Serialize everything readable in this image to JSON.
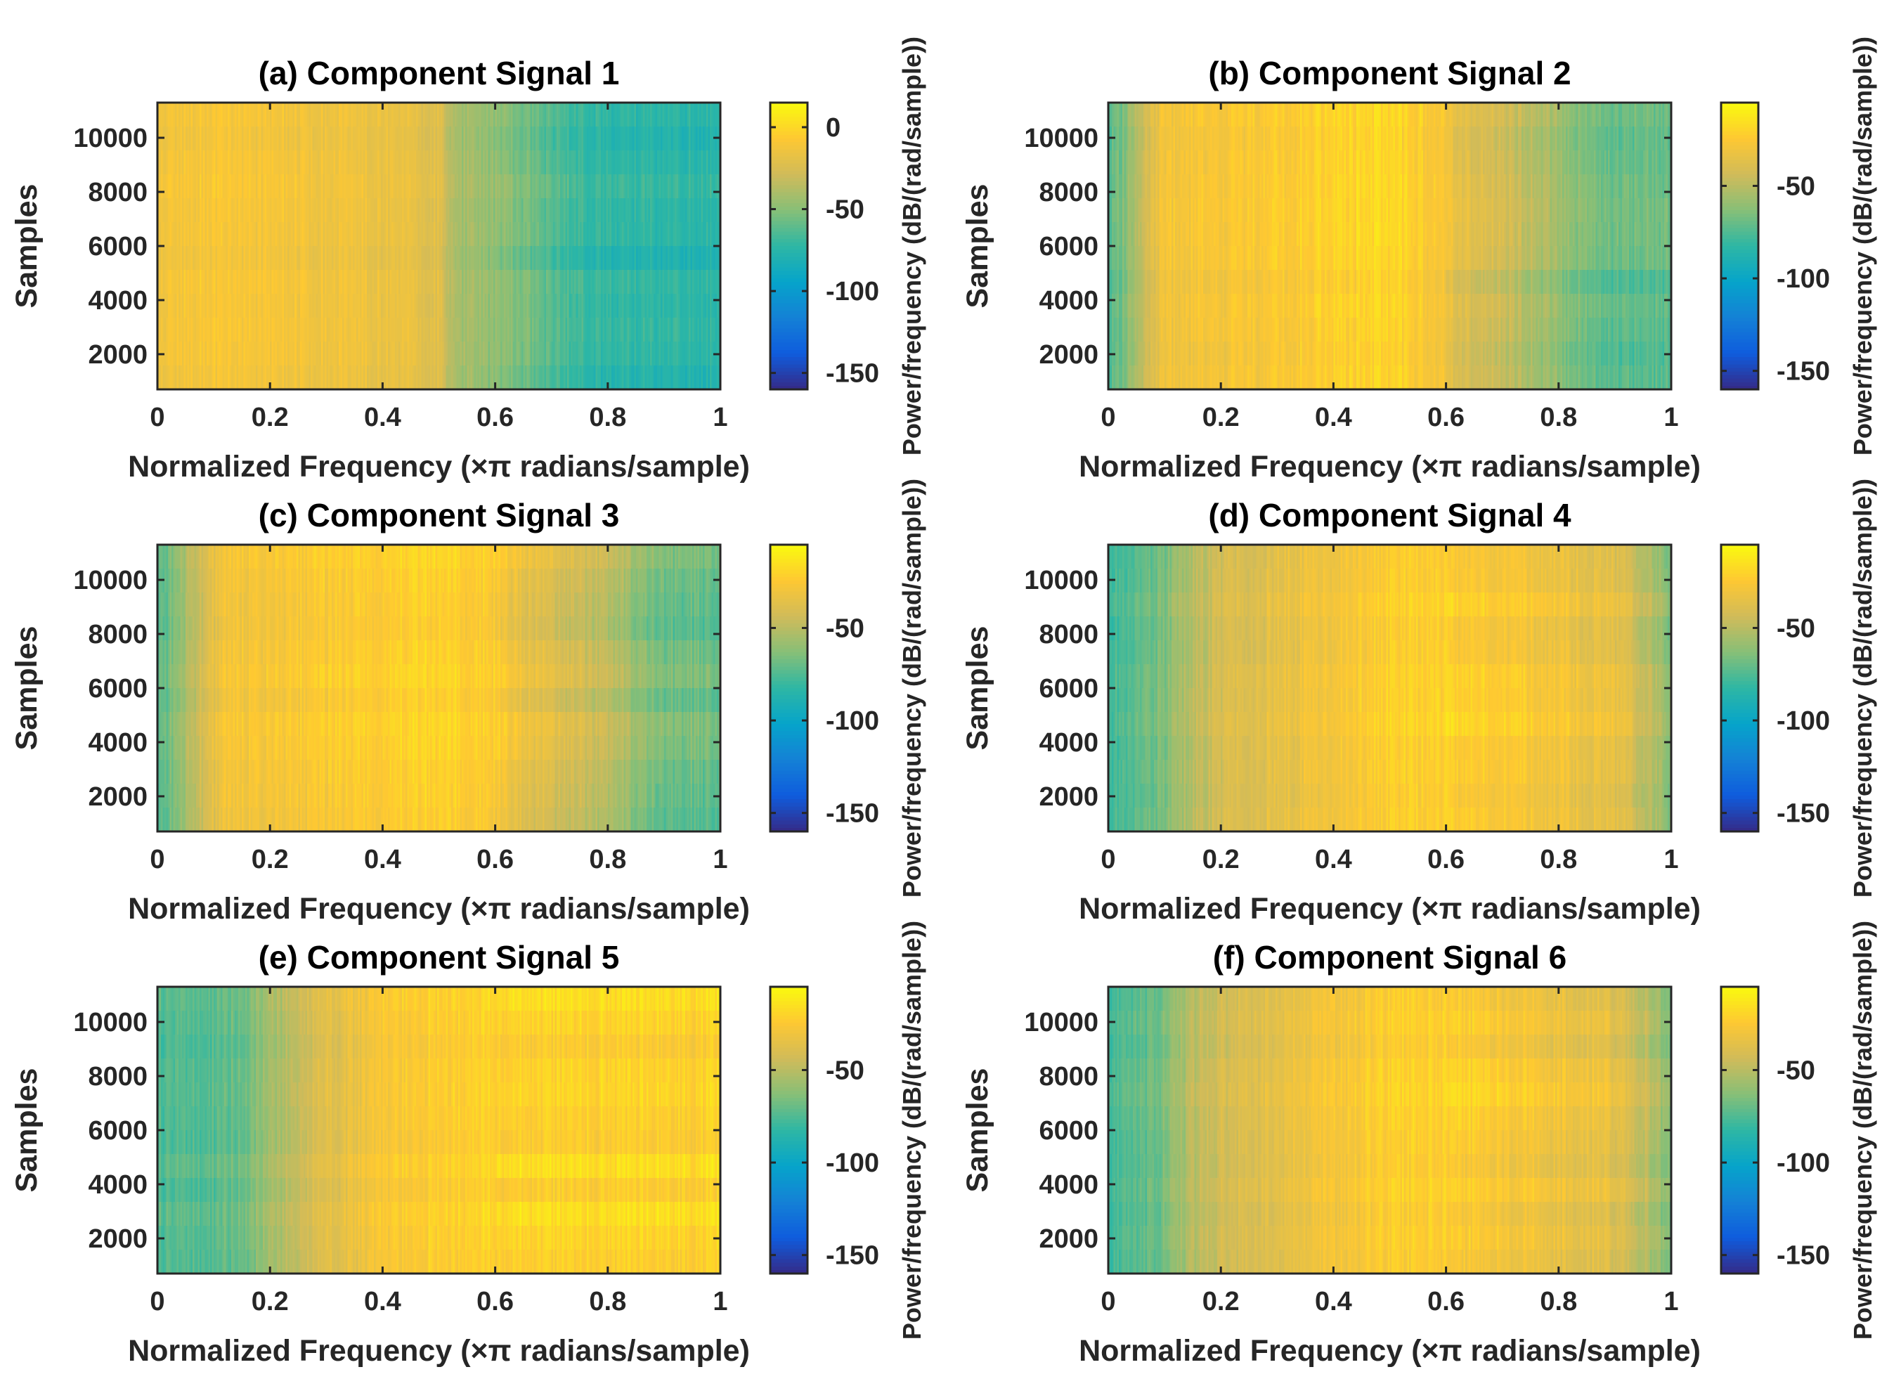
{
  "colors": {
    "parula_stops": [
      "#352a87",
      "#0f5cdd",
      "#1481d6",
      "#06a4ca",
      "#2eb7a4",
      "#87bf77",
      "#d1bb59",
      "#fec832",
      "#f9fb0e"
    ],
    "axis_line": "#262626",
    "text": "#262626"
  },
  "chart_data": [
    {
      "type": "heatmap",
      "panel": "a",
      "title": "(a) Component Signal 1",
      "xlabel": "Normalized Frequency (×π radians/sample)",
      "ylabel": "Samples",
      "xlim": [
        0,
        1
      ],
      "ylim": [
        700,
        11300
      ],
      "xticks": [
        0,
        0.2,
        0.4,
        0.6,
        0.8,
        1
      ],
      "xtick_labels": [
        "0",
        "0.2",
        "0.4",
        "0.6",
        "0.8",
        "1"
      ],
      "yticks": [
        2000,
        4000,
        6000,
        8000,
        10000
      ],
      "ytick_labels": [
        "2000",
        "4000",
        "6000",
        "8000",
        "10000"
      ],
      "colorbar": {
        "label": "Power/frequency (dB/(rad/sample))",
        "clim": [
          -160,
          15
        ],
        "ticks": [
          0,
          -50,
          -100,
          -150
        ],
        "tick_labels": [
          "0",
          "-50",
          "-100",
          "-150"
        ]
      },
      "profile": {
        "freq": [
          0,
          0.05,
          0.1,
          0.2,
          0.3,
          0.4,
          0.5,
          0.52,
          0.6,
          0.65,
          0.7,
          0.75,
          0.8,
          0.9,
          1.0
        ],
        "power_db": [
          -15,
          -12,
          -10,
          -12,
          -14,
          -16,
          -22,
          -40,
          -50,
          -55,
          -65,
          -70,
          -75,
          -75,
          -75
        ]
      }
    },
    {
      "type": "heatmap",
      "panel": "b",
      "title": "(b) Component Signal 2",
      "xlabel": "Normalized Frequency (×π radians/sample)",
      "ylabel": "Samples",
      "xlim": [
        0,
        1
      ],
      "ylim": [
        700,
        11300
      ],
      "xticks": [
        0,
        0.2,
        0.4,
        0.6,
        0.8,
        1
      ],
      "xtick_labels": [
        "0",
        "0.2",
        "0.4",
        "0.6",
        "0.8",
        "1"
      ],
      "yticks": [
        2000,
        4000,
        6000,
        8000,
        10000
      ],
      "ytick_labels": [
        "2000",
        "4000",
        "6000",
        "8000",
        "10000"
      ],
      "colorbar": {
        "label": "Power/frequency (dB/(rad/sample))",
        "clim": [
          -160,
          -5
        ],
        "ticks": [
          -50,
          -100,
          -150
        ],
        "tick_labels": [
          "-50",
          "-100",
          "-150"
        ]
      },
      "profile": {
        "freq": [
          0,
          0.03,
          0.06,
          0.1,
          0.2,
          0.3,
          0.4,
          0.5,
          0.6,
          0.62,
          0.7,
          0.8,
          0.85,
          0.9,
          1.0
        ],
        "power_db": [
          -75,
          -65,
          -45,
          -30,
          -28,
          -25,
          -22,
          -20,
          -28,
          -38,
          -45,
          -60,
          -68,
          -72,
          -72
        ]
      }
    },
    {
      "type": "heatmap",
      "panel": "c",
      "title": "(c) Component Signal 3",
      "xlabel": "Normalized Frequency (×π radians/sample)",
      "ylabel": "Samples",
      "xlim": [
        0,
        1
      ],
      "ylim": [
        700,
        11300
      ],
      "xticks": [
        0,
        0.2,
        0.4,
        0.6,
        0.8,
        1
      ],
      "xtick_labels": [
        "0",
        "0.2",
        "0.4",
        "0.6",
        "0.8",
        "1"
      ],
      "yticks": [
        2000,
        4000,
        6000,
        8000,
        10000
      ],
      "ytick_labels": [
        "2000",
        "4000",
        "6000",
        "8000",
        "10000"
      ],
      "colorbar": {
        "label": "Power/frequency (dB/(rad/sample))",
        "clim": [
          -160,
          -5
        ],
        "ticks": [
          -50,
          -100,
          -150
        ],
        "tick_labels": [
          "-50",
          "-100",
          "-150"
        ]
      },
      "profile": {
        "freq": [
          0,
          0.04,
          0.08,
          0.12,
          0.2,
          0.3,
          0.4,
          0.5,
          0.6,
          0.65,
          0.7,
          0.8,
          0.85,
          0.9,
          1.0
        ],
        "power_db": [
          -75,
          -60,
          -42,
          -30,
          -28,
          -25,
          -22,
          -20,
          -25,
          -33,
          -40,
          -48,
          -60,
          -68,
          -70
        ]
      }
    },
    {
      "type": "heatmap",
      "panel": "d",
      "title": "(d) Component Signal 4",
      "xlabel": "Normalized Frequency (×π radians/sample)",
      "ylabel": "Samples",
      "xlim": [
        0,
        1
      ],
      "ylim": [
        700,
        11300
      ],
      "xticks": [
        0,
        0.2,
        0.4,
        0.6,
        0.8,
        1
      ],
      "xtick_labels": [
        "0",
        "0.2",
        "0.4",
        "0.6",
        "0.8",
        "1"
      ],
      "yticks": [
        2000,
        4000,
        6000,
        8000,
        10000
      ],
      "ytick_labels": [
        "2000",
        "4000",
        "6000",
        "8000",
        "10000"
      ],
      "colorbar": {
        "label": "Power/frequency (dB/(rad/sample))",
        "clim": [
          -160,
          -5
        ],
        "ticks": [
          -50,
          -100,
          -150
        ],
        "tick_labels": [
          "-50",
          "-100",
          "-150"
        ]
      },
      "profile": {
        "freq": [
          0,
          0.05,
          0.1,
          0.15,
          0.2,
          0.3,
          0.4,
          0.5,
          0.6,
          0.7,
          0.8,
          0.9,
          0.95,
          1.0
        ],
        "power_db": [
          -78,
          -72,
          -65,
          -50,
          -42,
          -35,
          -28,
          -22,
          -22,
          -25,
          -30,
          -35,
          -45,
          -65
        ]
      }
    },
    {
      "type": "heatmap",
      "panel": "e",
      "title": "(e) Component Signal 5",
      "xlabel": "Normalized Frequency (×π radians/sample)",
      "ylabel": "Samples",
      "xlim": [
        0,
        1
      ],
      "ylim": [
        700,
        11300
      ],
      "xticks": [
        0,
        0.2,
        0.4,
        0.6,
        0.8,
        1
      ],
      "xtick_labels": [
        "0",
        "0.2",
        "0.4",
        "0.6",
        "0.8",
        "1"
      ],
      "yticks": [
        2000,
        4000,
        6000,
        8000,
        10000
      ],
      "ytick_labels": [
        "2000",
        "4000",
        "6000",
        "8000",
        "10000"
      ],
      "colorbar": {
        "label": "Power/frequency (dB/(rad/sample))",
        "clim": [
          -160,
          -5
        ],
        "ticks": [
          -50,
          -100,
          -150
        ],
        "tick_labels": [
          "-50",
          "-100",
          "-150"
        ]
      },
      "profile": {
        "freq": [
          0,
          0.1,
          0.15,
          0.2,
          0.25,
          0.3,
          0.4,
          0.5,
          0.6,
          0.7,
          0.8,
          0.9,
          1.0
        ],
        "power_db": [
          -75,
          -72,
          -68,
          -58,
          -45,
          -38,
          -28,
          -22,
          -20,
          -20,
          -20,
          -20,
          -20
        ]
      }
    },
    {
      "type": "heatmap",
      "panel": "f",
      "title": "(f) Component Signal 6",
      "xlabel": "Normalized Frequency (×π radians/sample)",
      "ylabel": "Samples",
      "xlim": [
        0,
        1
      ],
      "ylim": [
        700,
        11300
      ],
      "xticks": [
        0,
        0.2,
        0.4,
        0.6,
        0.8,
        1
      ],
      "xtick_labels": [
        "0",
        "0.2",
        "0.4",
        "0.6",
        "0.8",
        "1"
      ],
      "yticks": [
        2000,
        4000,
        6000,
        8000,
        10000
      ],
      "ytick_labels": [
        "2000",
        "4000",
        "6000",
        "8000",
        "10000"
      ],
      "colorbar": {
        "label": "Power/frequency (dB/(rad/sample))",
        "clim": [
          -160,
          -5
        ],
        "ticks": [
          -50,
          -100,
          -150
        ],
        "tick_labels": [
          "-50",
          "-100",
          "-150"
        ]
      },
      "profile": {
        "freq": [
          0,
          0.05,
          0.1,
          0.15,
          0.2,
          0.3,
          0.4,
          0.5,
          0.6,
          0.7,
          0.8,
          0.9,
          0.95,
          1.0
        ],
        "power_db": [
          -78,
          -72,
          -65,
          -50,
          -42,
          -35,
          -28,
          -22,
          -22,
          -25,
          -30,
          -35,
          -45,
          -65
        ]
      }
    }
  ]
}
